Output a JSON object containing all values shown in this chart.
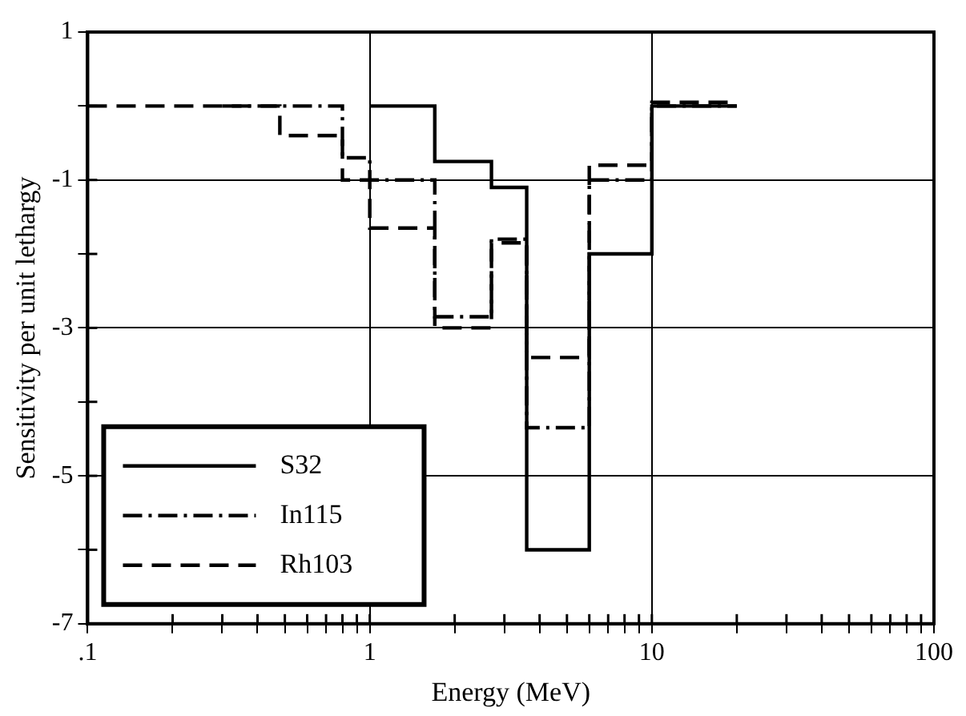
{
  "chart_data": {
    "type": "step",
    "xlabel": "Energy (MeV)",
    "ylabel": "Sensitivity per unit lethargy",
    "log": "x",
    "grid": true,
    "legend": "bottom left",
    "marker": "none",
    "xlim": [
      0.1,
      100
    ],
    "xticks": [
      {
        "value": 0.1,
        "label": ".1"
      },
      {
        "value": 0.2,
        "label": null
      },
      {
        "value": 0.3,
        "label": null
      },
      {
        "value": 0.4,
        "label": null
      },
      {
        "value": 0.5,
        "label": null
      },
      {
        "value": 0.6,
        "label": null
      },
      {
        "value": 0.7,
        "label": null
      },
      {
        "value": 0.8,
        "label": null
      },
      {
        "value": 0.9,
        "label": null
      },
      1,
      {
        "value": 2,
        "label": null
      },
      {
        "value": 3,
        "label": null
      },
      {
        "value": 4,
        "label": null
      },
      {
        "value": 5,
        "label": null
      },
      {
        "value": 6,
        "label": null
      },
      {
        "value": 7,
        "label": null
      },
      {
        "value": 8,
        "label": null
      },
      {
        "value": 9,
        "label": null
      },
      10,
      {
        "value": 20,
        "label": null
      },
      {
        "value": 30,
        "label": null
      },
      {
        "value": 40,
        "label": null
      },
      {
        "value": 50,
        "label": null
      },
      {
        "value": 60,
        "label": null
      },
      {
        "value": 70,
        "label": null
      },
      {
        "value": 80,
        "label": null
      },
      {
        "value": 90,
        "label": null
      },
      100
    ],
    "ylim": [
      -7,
      1
    ],
    "yticks": [
      -7,
      {
        "value": -6,
        "label": null
      },
      -5,
      {
        "value": -4,
        "label": null
      },
      -3,
      {
        "value": -2,
        "label": null
      },
      -1,
      {
        "value": 0,
        "label": null
      },
      1
    ],
    "series": [
      {
        "name": "S32",
        "color": "#000000",
        "line_style": "solid",
        "x": [
          1,
          1.7,
          2.7,
          3.6,
          6,
          10,
          20
        ],
        "values": [
          0,
          -0.75,
          -1.1,
          -6,
          -2,
          0,
          0
        ]
      },
      {
        "name": "In115",
        "color": "#000000",
        "line_style": "dashdot",
        "x": [
          0.3,
          0.8,
          1,
          1.7,
          2.7,
          3.6,
          6,
          10,
          20
        ],
        "values": [
          0,
          -0.7,
          -1,
          -2.85,
          -1.8,
          -4.35,
          -1,
          0,
          0
        ]
      },
      {
        "name": "Rh103",
        "color": "#000000",
        "line_style": "dashed",
        "x": [
          0.1,
          0.48,
          0.8,
          1,
          1.7,
          2.7,
          3.6,
          6,
          10,
          20
        ],
        "values": [
          0,
          -0.4,
          -1,
          -1.65,
          -3,
          -1.85,
          -3.4,
          -0.8,
          0.05,
          0.05
        ]
      }
    ]
  }
}
